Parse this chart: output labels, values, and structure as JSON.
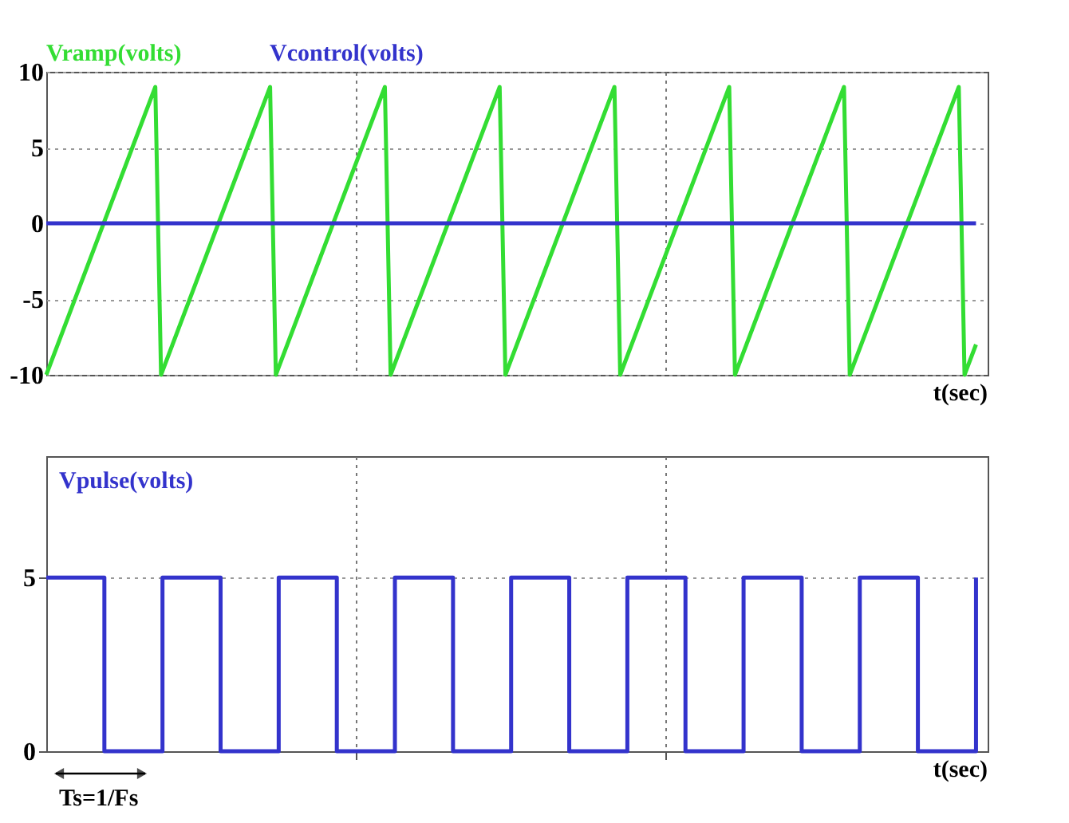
{
  "chart_data": [
    {
      "type": "line",
      "xlabel": "t(sec)",
      "ylim": [
        -10,
        10
      ],
      "yticks": [
        -10,
        -5,
        0,
        5,
        10
      ],
      "tick_labels": "y",
      "grid": true,
      "categories": [
        null,
        null,
        null,
        null,
        null,
        null,
        null,
        null,
        null,
        null,
        null,
        null,
        null,
        null,
        null,
        null,
        null,
        null,
        null,
        null,
        null,
        null,
        null,
        null,
        null,
        null,
        null,
        null,
        null,
        null,
        null,
        null,
        null,
        null,
        null,
        null,
        null,
        null,
        null,
        null,
        null,
        null,
        null,
        null,
        null,
        null,
        null,
        null,
        null,
        null,
        null,
        null,
        null,
        null,
        null,
        null,
        null,
        null,
        null,
        null,
        null,
        null,
        null,
        null,
        null,
        null,
        null,
        null,
        null,
        null,
        null,
        null,
        null,
        null,
        null,
        null,
        null,
        null,
        null,
        null,
        null,
        null,
        null,
        null,
        null,
        null,
        null,
        null,
        null,
        null,
        null,
        null,
        null,
        null,
        null,
        null,
        null,
        null,
        null,
        null,
        null,
        null,
        null,
        null,
        null,
        null,
        null,
        null,
        null,
        null,
        null,
        null,
        null,
        null,
        null,
        null,
        null,
        null,
        null,
        null,
        null,
        null,
        null,
        null,
        null,
        null,
        null,
        null,
        null,
        null,
        null,
        null,
        null,
        null,
        null,
        null,
        null,
        null,
        null,
        null,
        null,
        null,
        null,
        null,
        null,
        null,
        null,
        null,
        null,
        null,
        null,
        null,
        null,
        null,
        null,
        null,
        null,
        null,
        null,
        null,
        null,
        null,
        null
      ],
      "series": [
        {
          "name": "Vramp(volts)",
          "color": "#33dd33",
          "values": [
            -10,
            -9,
            -8,
            -7,
            -6,
            -5,
            -4,
            -3,
            -2,
            -1,
            0,
            1,
            2,
            3,
            4,
            5,
            6,
            7,
            8,
            9,
            -10,
            -9,
            -8,
            -7,
            -6,
            -5,
            -4,
            -3,
            -2,
            -1,
            0,
            1,
            2,
            3,
            4,
            5,
            6,
            7,
            8,
            9,
            -10,
            -9,
            -8,
            -7,
            -6,
            -5,
            -4,
            -3,
            -2,
            -1,
            0,
            1,
            2,
            3,
            4,
            5,
            6,
            7,
            8,
            9,
            -10,
            -9,
            -8,
            -7,
            -6,
            -5,
            -4,
            -3,
            -2,
            -1,
            0,
            1,
            2,
            3,
            4,
            5,
            6,
            7,
            8,
            9,
            -10,
            -9,
            -8,
            -7,
            -6,
            -5,
            -4,
            -3,
            -2,
            -1,
            0,
            1,
            2,
            3,
            4,
            5,
            6,
            7,
            8,
            9,
            -10,
            -9,
            -8,
            -7,
            -6,
            -5,
            -4,
            -3,
            -2,
            -1,
            0,
            1,
            2,
            3,
            4,
            5,
            6,
            7,
            8,
            9,
            -10,
            -9,
            -8,
            -7,
            -6,
            -5,
            -4,
            -3,
            -2,
            -1,
            0,
            1,
            2,
            3,
            4,
            5,
            6,
            7,
            8,
            9,
            -10,
            -9,
            -8,
            -7,
            -6,
            -5,
            -4,
            -3,
            -2,
            -1,
            0,
            1,
            2,
            3,
            4,
            5,
            6,
            7,
            8,
            9,
            -10,
            -9,
            -8
          ]
        },
        {
          "name": "Vcontrol(volts)",
          "color": "#3333cc",
          "values": [
            0,
            0,
            0,
            0,
            0,
            0,
            0,
            0,
            0,
            0,
            0,
            0,
            0,
            0,
            0,
            0,
            0,
            0,
            0,
            0,
            0,
            0,
            0,
            0,
            0,
            0,
            0,
            0,
            0,
            0,
            0,
            0,
            0,
            0,
            0,
            0,
            0,
            0,
            0,
            0,
            0,
            0,
            0,
            0,
            0,
            0,
            0,
            0,
            0,
            0,
            0,
            0,
            0,
            0,
            0,
            0,
            0,
            0,
            0,
            0,
            0,
            0,
            0,
            0,
            0,
            0,
            0,
            0,
            0,
            0,
            0,
            0,
            0,
            0,
            0,
            0,
            0,
            0,
            0,
            0,
            0,
            0,
            0,
            0,
            0,
            0,
            0,
            0,
            0,
            0,
            0,
            0,
            0,
            0,
            0,
            0,
            0,
            0,
            0,
            0,
            0,
            0,
            0,
            0,
            0,
            0,
            0,
            0,
            0,
            0,
            0,
            0,
            0,
            0,
            0,
            0,
            0,
            0,
            0,
            0,
            0,
            0,
            0,
            0,
            0,
            0,
            0,
            0,
            0,
            0,
            0,
            0,
            0,
            0,
            0,
            0,
            0,
            0,
            0,
            0,
            0,
            0,
            0,
            0,
            0,
            0,
            0,
            0,
            0,
            0,
            0,
            0,
            0,
            0,
            0,
            0,
            0,
            0,
            0,
            0,
            0,
            0,
            0
          ]
        }
      ]
    },
    {
      "type": "step",
      "xlabel": "t(sec)",
      "ylim": [
        0,
        8.5
      ],
      "yticks": [
        0,
        5
      ],
      "tick_labels": "y",
      "grid": true,
      "annotations": [
        "Ts=1/Fs"
      ],
      "categories": [
        null,
        null,
        null,
        null,
        null,
        null,
        null,
        null,
        null,
        null,
        null,
        null,
        null,
        null,
        null,
        null,
        null
      ],
      "series": [
        {
          "name": "Vpulse(volts)",
          "color": "#3333cc",
          "values": [
            5,
            0,
            5,
            0,
            5,
            0,
            5,
            0,
            5,
            0,
            5,
            0,
            5,
            0,
            5,
            0,
            5
          ]
        }
      ]
    }
  ]
}
